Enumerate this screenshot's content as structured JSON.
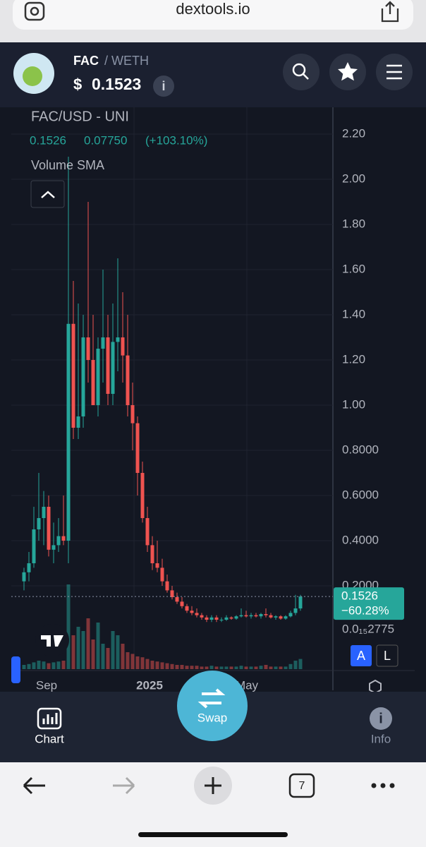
{
  "browser": {
    "url": "dextools.io",
    "tabs": "7"
  },
  "header": {
    "base": "FAC",
    "quote": "/ WETH",
    "currency": "$",
    "price": "0.1523"
  },
  "chart_data": {
    "type": "candlestick",
    "title": "FAC/USD - UNI",
    "legend": {
      "price": "0.1526",
      "change": "0.07750",
      "change_pct": "(+103.10%)"
    },
    "indicator": "Volume SMA",
    "x_labels": [
      "Sep",
      "2025",
      "May"
    ],
    "open": [
      0.22,
      0.26,
      0.3,
      0.45,
      0.5,
      0.55,
      0.36,
      0.38,
      0.42,
      0.4,
      1.36,
      0.9,
      0.95,
      1.3,
      1.2,
      1.0,
      1.25,
      1.3,
      1.05,
      1.28,
      1.3,
      1.22,
      1.0,
      0.92,
      0.7,
      0.5,
      0.38,
      0.3,
      0.28,
      0.22,
      0.18,
      0.15,
      0.13,
      0.11,
      0.09,
      0.08,
      0.07,
      0.06,
      0.05,
      0.06,
      0.05,
      0.05,
      0.06,
      0.055,
      0.065,
      0.07,
      0.065,
      0.07,
      0.065,
      0.075,
      0.07,
      0.06,
      0.065,
      0.055,
      0.065,
      0.08,
      0.1
    ],
    "high": [
      0.28,
      0.35,
      0.55,
      0.7,
      0.62,
      0.6,
      0.48,
      0.5,
      0.6,
      2.1,
      1.55,
      1.45,
      1.4,
      1.9,
      1.4,
      1.3,
      1.6,
      1.4,
      1.45,
      1.65,
      1.5,
      1.4,
      1.1,
      0.95,
      0.75,
      0.55,
      0.42,
      0.4,
      0.32,
      0.25,
      0.2,
      0.17,
      0.15,
      0.12,
      0.11,
      0.1,
      0.08,
      0.07,
      0.07,
      0.07,
      0.06,
      0.07,
      0.065,
      0.07,
      0.1,
      0.09,
      0.08,
      0.08,
      0.08,
      0.1,
      0.08,
      0.07,
      0.07,
      0.07,
      0.09,
      0.16,
      0.16
    ],
    "low": [
      0.18,
      0.22,
      0.28,
      0.4,
      0.38,
      0.33,
      0.3,
      0.35,
      0.38,
      0.3,
      0.85,
      0.85,
      0.9,
      1.1,
      1.0,
      0.95,
      1.1,
      1.0,
      1.0,
      1.15,
      1.1,
      0.95,
      0.8,
      0.6,
      0.48,
      0.35,
      0.27,
      0.26,
      0.2,
      0.17,
      0.14,
      0.12,
      0.1,
      0.08,
      0.07,
      0.06,
      0.05,
      0.04,
      0.04,
      0.04,
      0.04,
      0.045,
      0.05,
      0.05,
      0.06,
      0.06,
      0.055,
      0.06,
      0.055,
      0.06,
      0.055,
      0.05,
      0.05,
      0.05,
      0.06,
      0.07,
      0.09
    ],
    "close": [
      0.26,
      0.3,
      0.45,
      0.5,
      0.55,
      0.36,
      0.38,
      0.42,
      0.4,
      1.36,
      0.9,
      0.95,
      1.3,
      1.2,
      1.0,
      1.25,
      1.3,
      1.05,
      1.28,
      1.3,
      1.22,
      1.0,
      0.92,
      0.7,
      0.5,
      0.38,
      0.3,
      0.28,
      0.22,
      0.18,
      0.15,
      0.13,
      0.11,
      0.09,
      0.08,
      0.07,
      0.06,
      0.05,
      0.06,
      0.05,
      0.05,
      0.06,
      0.055,
      0.065,
      0.07,
      0.065,
      0.07,
      0.065,
      0.075,
      0.07,
      0.06,
      0.065,
      0.055,
      0.065,
      0.08,
      0.1,
      0.1526
    ],
    "volume": [
      5,
      6,
      8,
      10,
      9,
      7,
      8,
      9,
      10,
      100,
      40,
      50,
      45,
      60,
      35,
      55,
      30,
      25,
      45,
      40,
      30,
      20,
      18,
      15,
      14,
      12,
      10,
      9,
      8,
      7,
      6,
      5,
      5,
      4,
      4,
      4,
      3,
      3,
      4,
      3,
      3,
      3,
      3,
      3,
      4,
      3,
      3,
      3,
      4,
      5,
      3,
      3,
      3,
      3,
      6,
      10,
      12
    ],
    "up_color": "#26a69a",
    "down_color": "#ef5350",
    "ylim": [
      0,
      2.325
    ],
    "yticks": [
      {
        "value": 2.2,
        "label": "2.20"
      },
      {
        "value": 2.0,
        "label": "2.00"
      },
      {
        "value": 1.8,
        "label": "1.80"
      },
      {
        "value": 1.6,
        "label": "1.60"
      },
      {
        "value": 1.4,
        "label": "1.40"
      },
      {
        "value": 1.2,
        "label": "1.20"
      },
      {
        "value": 1.0,
        "label": "1.00"
      },
      {
        "value": 0.8,
        "label": "0.8000"
      },
      {
        "value": 0.6,
        "label": "0.6000"
      },
      {
        "value": 0.4,
        "label": "0.4000"
      },
      {
        "value": 0.2,
        "label": "0.2000"
      }
    ],
    "grid": true,
    "last_price": 0.1526,
    "last_change": "−60.28%",
    "low_label": "0.0₁₅2775",
    "scale_buttons": [
      "A",
      "L"
    ]
  },
  "nav": {
    "chart": "Chart",
    "swap": "Swap",
    "info": "Info"
  }
}
